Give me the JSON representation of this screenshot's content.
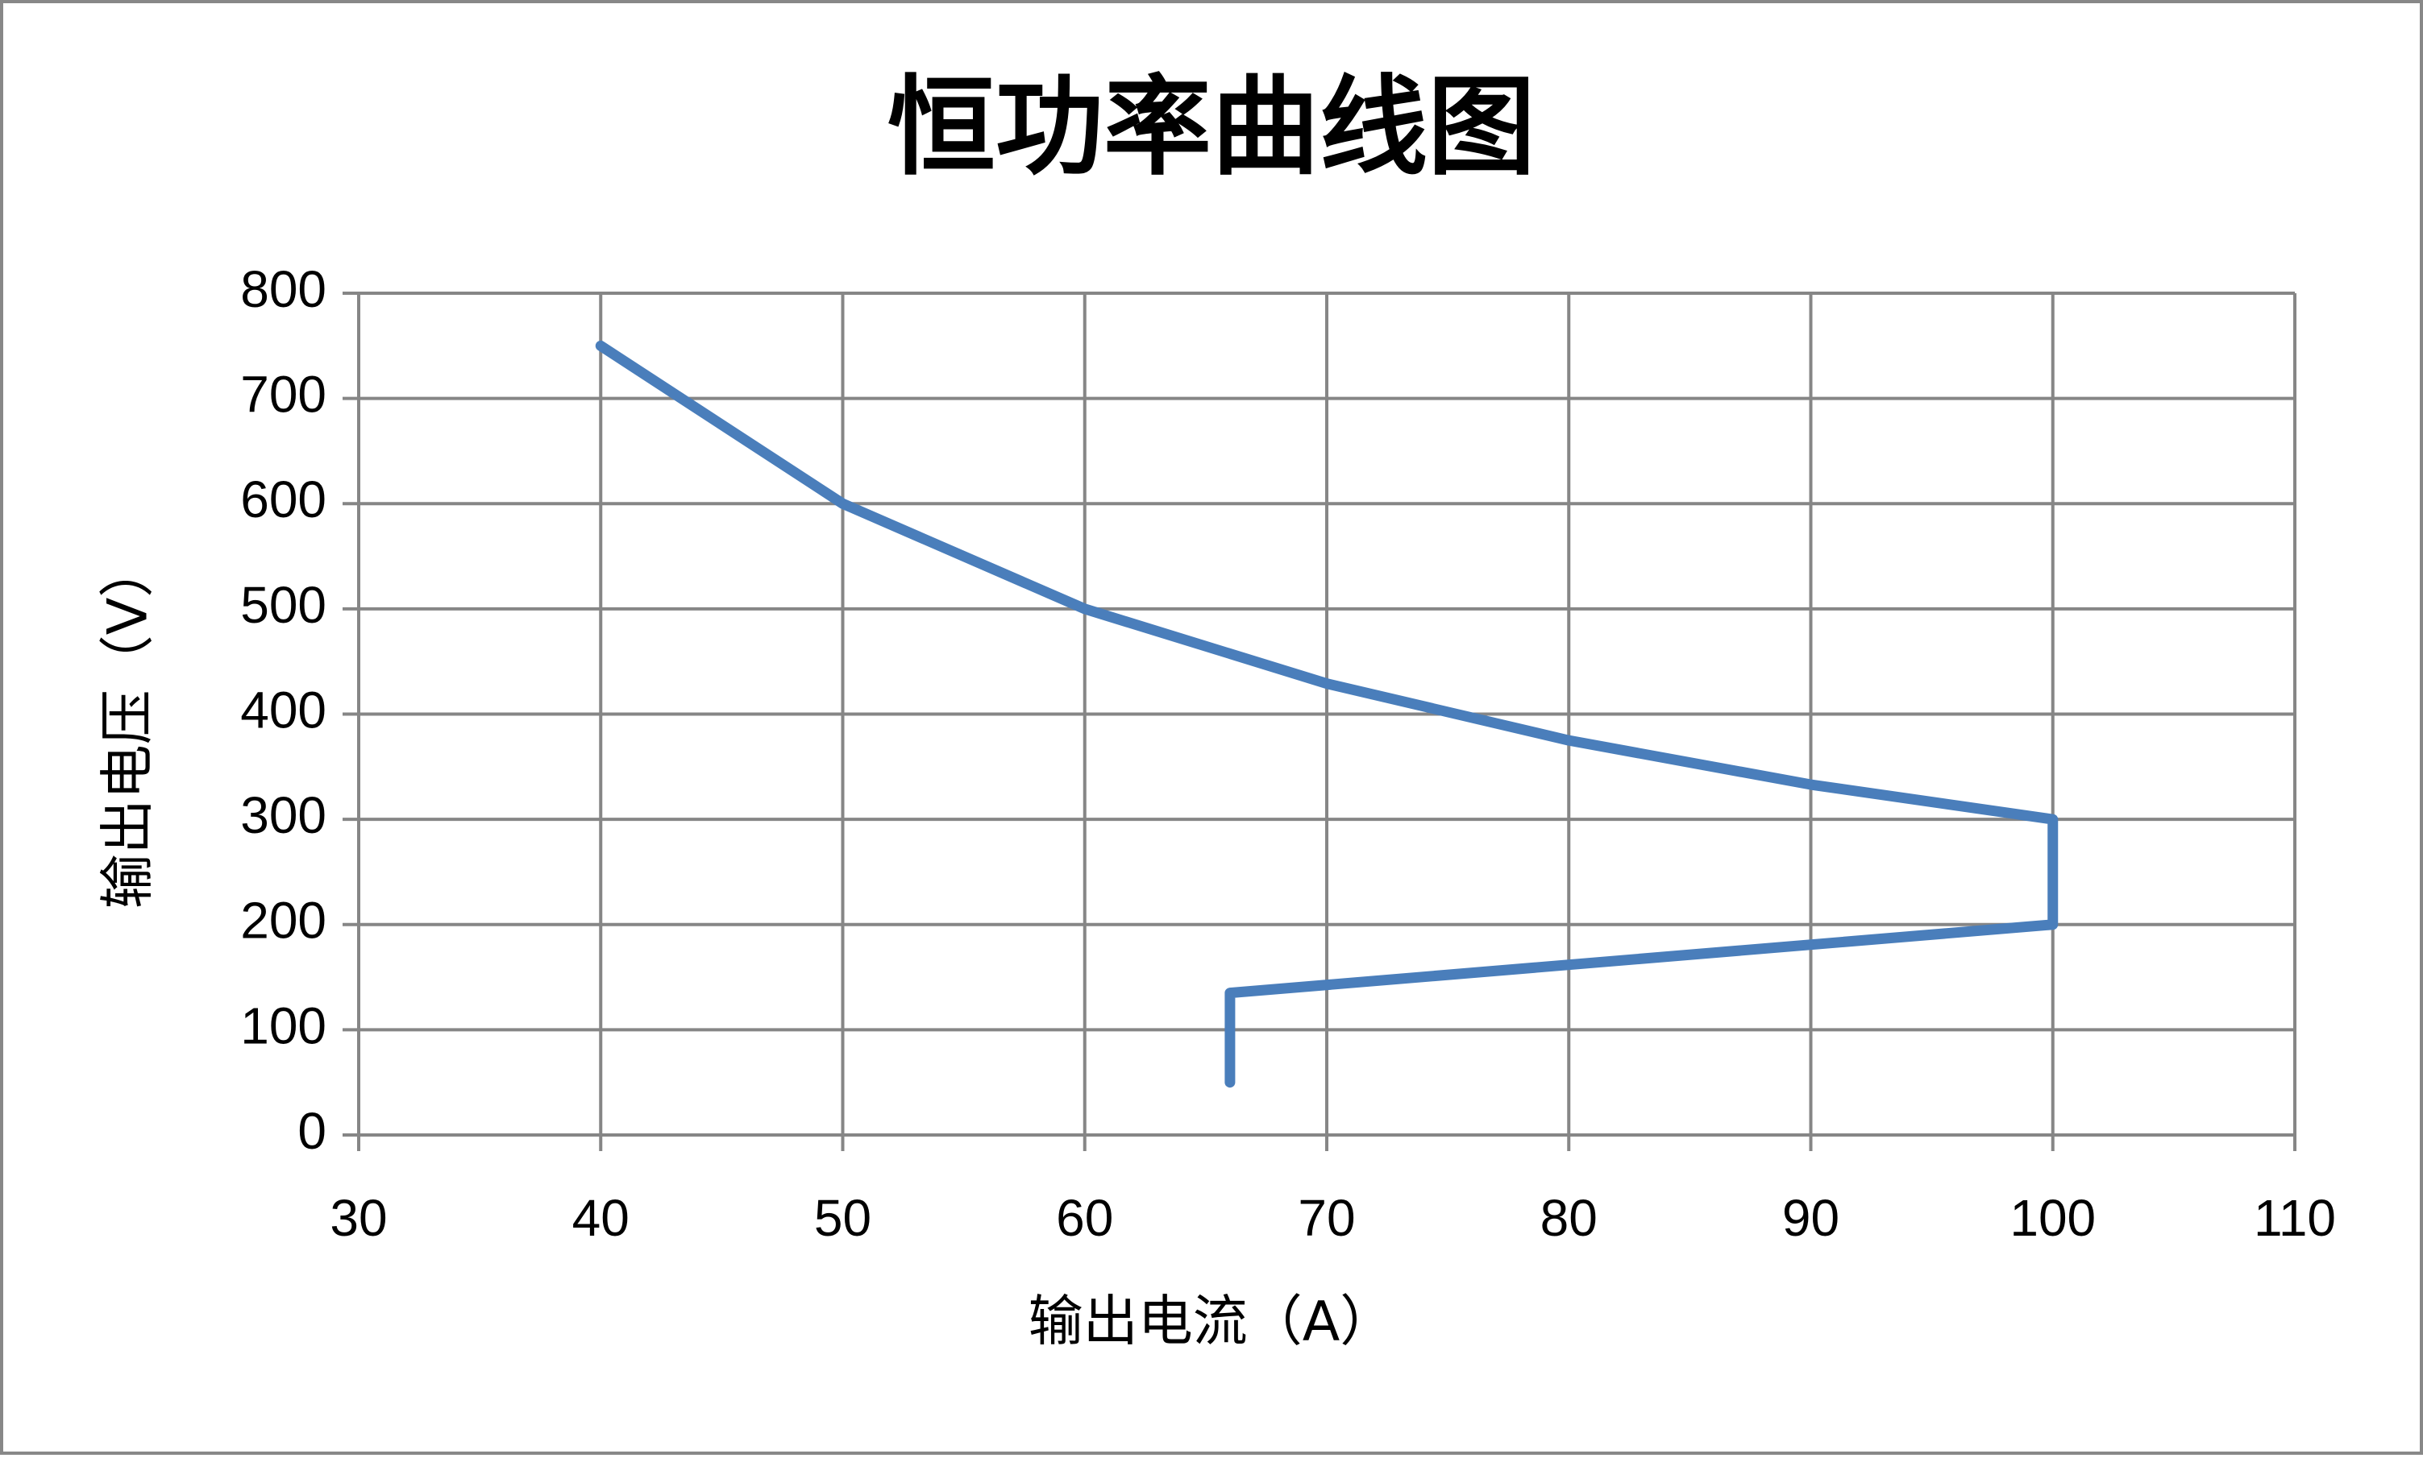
{
  "chart_data": {
    "type": "line",
    "title": "恒功率曲线图",
    "x_label": "输出电流（A）",
    "y_label": "输出电压（V）",
    "series": [
      {
        "color": "#4a7ebb",
        "x": [
          40,
          50,
          60,
          70,
          80,
          90,
          100,
          100,
          66,
          66
        ],
        "values": [
          750,
          600,
          500,
          429,
          375,
          333,
          300,
          200,
          135,
          50
        ]
      }
    ],
    "xlim": [
      30,
      110
    ],
    "xticks": [
      30,
      40,
      50,
      60,
      70,
      80,
      90,
      100,
      110
    ],
    "ylim": [
      0,
      800
    ],
    "yticks": [
      0,
      100,
      200,
      300,
      400,
      500,
      600,
      700,
      800
    ],
    "grid": true
  }
}
